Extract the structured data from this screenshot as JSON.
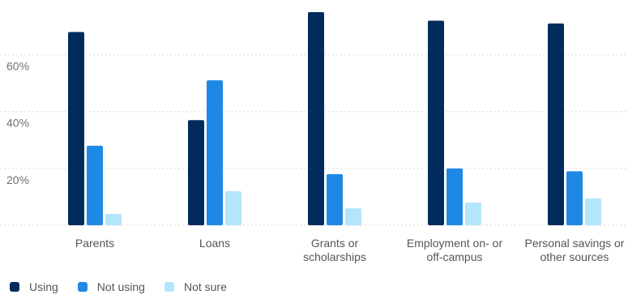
{
  "chart_data": {
    "type": "bar",
    "title": "",
    "xlabel": "",
    "ylabel": "",
    "ylim": [
      0,
      77
    ],
    "yticks": [
      20,
      40,
      60
    ],
    "ytick_labels": [
      "20%",
      "40%",
      "60%"
    ],
    "grid": true,
    "legend_position": "bottom-left",
    "categories": [
      [
        "Parents"
      ],
      [
        "Loans"
      ],
      [
        "Grants or",
        "scholarships"
      ],
      [
        "Employment on- or",
        "off-campus"
      ],
      [
        "Personal savings or",
        "other sources"
      ]
    ],
    "series": [
      {
        "name": "Using",
        "color": "#002b5c",
        "values": [
          68,
          37,
          75,
          72,
          71
        ]
      },
      {
        "name": "Not using",
        "color": "#1e88e5",
        "values": [
          28,
          51,
          18,
          20,
          19
        ]
      },
      {
        "name": "Not sure",
        "color": "#b3e5fc",
        "values": [
          4,
          12,
          6,
          8,
          9.5
        ]
      }
    ]
  }
}
